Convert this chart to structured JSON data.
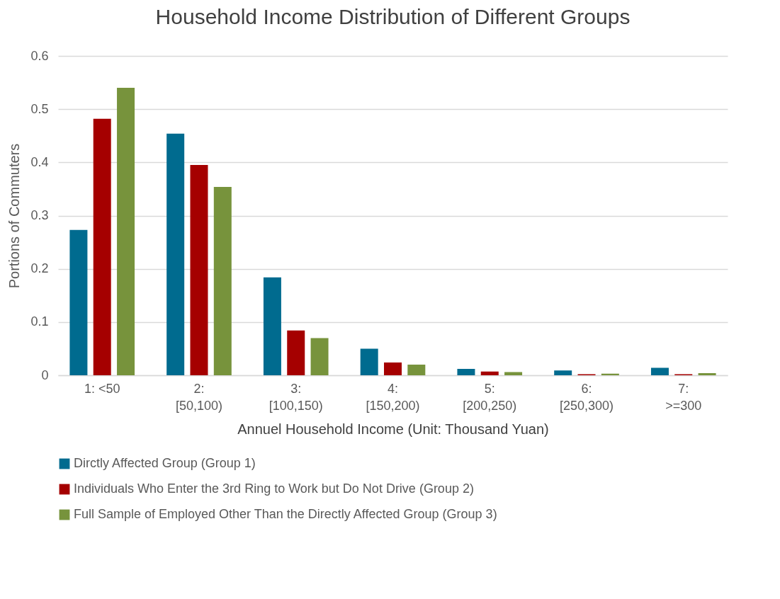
{
  "chart_data": {
    "type": "bar",
    "title": "Household Income Distribution of Different Groups",
    "xlabel": "Annuel Household Income (Unit: Thousand Yuan)",
    "ylabel": "Portions of Commuters",
    "categories": [
      "1:  <50",
      "2: [50,100)",
      "3: [100,150)",
      "4: [150,200)",
      "5: [200,250)",
      "6: [250,300)",
      "7: >=300"
    ],
    "series": [
      {
        "name": "Dirctly Affected Group (Group 1)",
        "color": "#006b8f",
        "values": [
          0.273,
          0.454,
          0.184,
          0.05,
          0.012,
          0.009,
          0.014
        ]
      },
      {
        "name": "Individuals Who Enter the 3rd Ring to Work but Do Not Drive (Group 2)",
        "color": "#a50000",
        "values": [
          0.482,
          0.395,
          0.084,
          0.024,
          0.007,
          0.002,
          0.002
        ]
      },
      {
        "name": "Full Sample of Employed Other Than the Directly Affected Group (Group 3)",
        "color": "#77933c",
        "values": [
          0.54,
          0.354,
          0.07,
          0.02,
          0.006,
          0.003,
          0.004
        ]
      }
    ],
    "ylim": [
      0,
      0.6
    ],
    "yticks": [
      0,
      0.1,
      0.2,
      0.3,
      0.4,
      0.5,
      0.6
    ],
    "grid": "y",
    "legend": "bottom"
  }
}
